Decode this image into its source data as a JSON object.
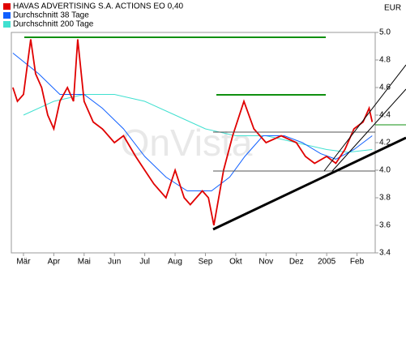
{
  "chart_data": {
    "type": "line",
    "currency": "EUR",
    "watermark": "OnVista",
    "xlim": [
      -0.4,
      11.6
    ],
    "xticks": [
      {
        "value": 0,
        "label": "Mär"
      },
      {
        "value": 1,
        "label": "Apr"
      },
      {
        "value": 2,
        "label": "Mai"
      },
      {
        "value": 3,
        "label": "Jun"
      },
      {
        "value": 4,
        "label": "Jul"
      },
      {
        "value": 5,
        "label": "Aug"
      },
      {
        "value": 6,
        "label": "Sep"
      },
      {
        "value": 7,
        "label": "Okt"
      },
      {
        "value": 8,
        "label": "Nov"
      },
      {
        "value": 9,
        "label": "Dez"
      },
      {
        "value": 10,
        "label": "2005"
      },
      {
        "value": 11,
        "label": "Feb"
      }
    ],
    "ylim": [
      3.4,
      5.0
    ],
    "yticks": [
      3.4,
      3.6,
      3.8,
      {
        "value": 4,
        "label": "4.0"
      },
      4.2,
      4.4,
      4.6,
      4.8,
      {
        "value": 5,
        "label": "5.0"
      }
    ],
    "series": [
      {
        "name": "HAVAS ADVERTISING S.A. ACTIONS EO 0,40",
        "color": "#e00000",
        "x": [
          -0.35,
          -0.2,
          0,
          0.24,
          0.4,
          0.6,
          0.8,
          1.0,
          1.2,
          1.45,
          1.65,
          1.79,
          2.0,
          2.3,
          2.6,
          3.0,
          3.3,
          3.7,
          4.0,
          4.3,
          4.7,
          5.0,
          5.3,
          5.5,
          5.9,
          6.1,
          6.28,
          6.6,
          6.9,
          7.27,
          7.6,
          8.0,
          8.5,
          9.0,
          9.3,
          9.6,
          10.0,
          10.3,
          10.6,
          10.9,
          11.2,
          11.4,
          11.5
        ],
        "values": [
          4.6,
          4.5,
          4.55,
          4.95,
          4.7,
          4.6,
          4.4,
          4.3,
          4.5,
          4.6,
          4.5,
          4.95,
          4.5,
          4.35,
          4.3,
          4.2,
          4.25,
          4.1,
          4.0,
          3.9,
          3.8,
          4.0,
          3.8,
          3.75,
          3.85,
          3.8,
          3.6,
          4.0,
          4.25,
          4.5,
          4.3,
          4.2,
          4.25,
          4.2,
          4.1,
          4.05,
          4.1,
          4.05,
          4.15,
          4.3,
          4.35,
          4.45,
          4.35
        ]
      },
      {
        "name": "Durchschnitt 38 Tage",
        "color": "#1060ff",
        "x": [
          -0.35,
          0.5,
          1.2,
          2.0,
          2.6,
          3.3,
          4.0,
          4.7,
          5.4,
          6.2,
          6.8,
          7.3,
          7.9,
          8.6,
          9.2,
          9.8,
          10.3,
          10.9,
          11.5
        ],
        "values": [
          4.85,
          4.7,
          4.55,
          4.55,
          4.45,
          4.3,
          4.1,
          3.95,
          3.85,
          3.85,
          3.95,
          4.1,
          4.25,
          4.25,
          4.2,
          4.12,
          4.08,
          4.15,
          4.25
        ]
      },
      {
        "name": "Durchschnitt 200 Tage",
        "color": "#40e0d0",
        "x": [
          0,
          1,
          2,
          3,
          4,
          5,
          6,
          7,
          8,
          9,
          10,
          10.7,
          11.5
        ],
        "values": [
          4.4,
          4.5,
          4.55,
          4.55,
          4.5,
          4.4,
          4.3,
          4.25,
          4.25,
          4.2,
          4.15,
          4.13,
          4.15
        ]
      }
    ]
  }
}
